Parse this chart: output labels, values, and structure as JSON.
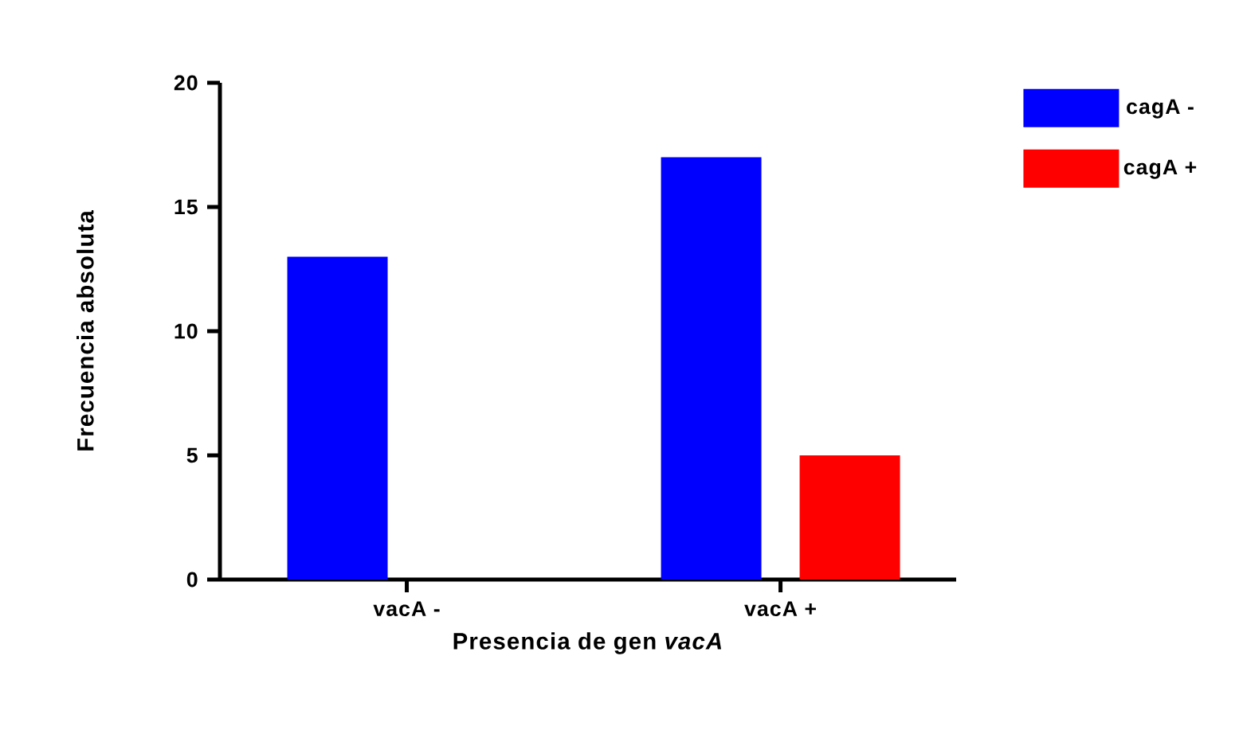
{
  "chart_data": {
    "type": "bar",
    "xlabel": "Presencia de gen *vacA*",
    "ylabel": "Frecuencia absoluta",
    "categories": [
      "vacA -",
      "vacA +"
    ],
    "series": [
      {
        "name": "cagA -",
        "color": "#0000ff",
        "values": [
          13,
          17
        ]
      },
      {
        "name": "cagA +",
        "color": "#ff0000",
        "values": [
          0,
          5
        ]
      }
    ],
    "ylim": [
      0,
      20
    ],
    "yticks": [
      0,
      5,
      10,
      15,
      20
    ],
    "grid": false,
    "legend": "top right"
  }
}
